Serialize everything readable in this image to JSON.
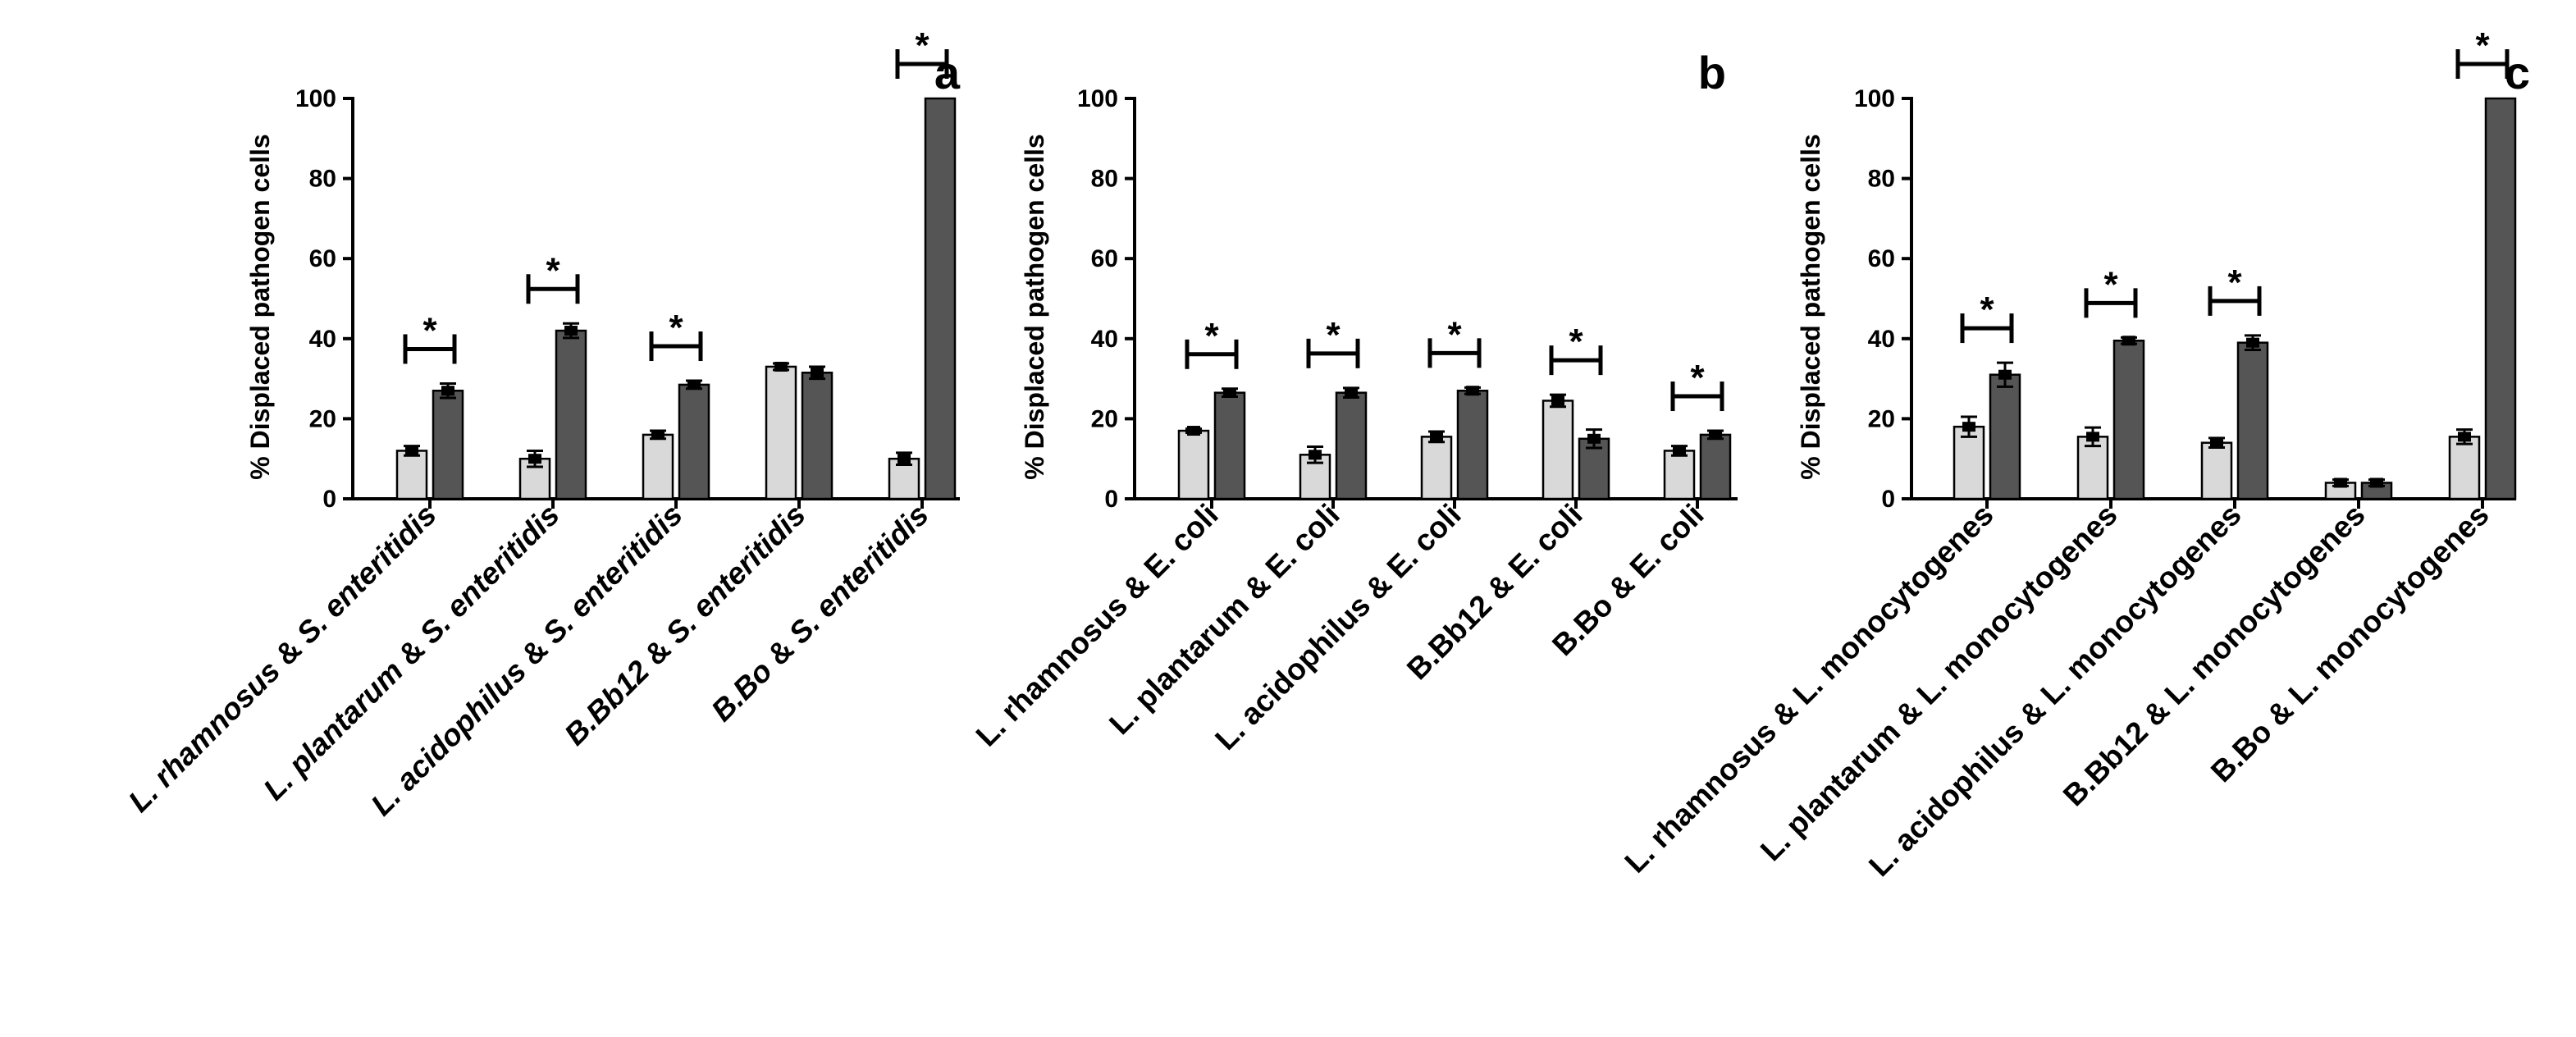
{
  "colors": {
    "treatment_a": "#d9d9d9",
    "treatment_b": "#555555",
    "axis": "#000000"
  },
  "chart_data": [
    {
      "type": "bar",
      "panel_label": "a",
      "ylabel": "% Displaced pathogen cells",
      "ylim": [
        0,
        100
      ],
      "yticks": [
        "0",
        "20",
        "40",
        "60",
        "80",
        "100"
      ],
      "categories": [
        [
          {
            "t": "L. rhamnosus",
            "i": true
          },
          {
            "t": " & ",
            "i": false
          },
          {
            "t": "S. enteritidis",
            "i": true
          }
        ],
        [
          {
            "t": "L. plantarum",
            "i": true
          },
          {
            "t": " & ",
            "i": false
          },
          {
            "t": "S. enteritidis",
            "i": true
          }
        ],
        [
          {
            "t": "L. acidophilus",
            "i": true
          },
          {
            "t": " & ",
            "i": false
          },
          {
            "t": "S. enteritidis",
            "i": true
          }
        ],
        [
          {
            "t": "B.Bb12",
            "i": true
          },
          {
            "t": " & ",
            "i": false
          },
          {
            "t": "S. enteritidis",
            "i": true
          }
        ],
        [
          {
            "t": "B.Bo",
            "i": true
          },
          {
            "t": " & ",
            "i": false
          },
          {
            "t": "S. enteritidis",
            "i": true
          }
        ]
      ],
      "series": [
        {
          "name": "light",
          "values": [
            12,
            10,
            16,
            33,
            10
          ],
          "errors": [
            1.2,
            2.0,
            1.0,
            0.8,
            1.5
          ]
        },
        {
          "name": "dark",
          "values": [
            27,
            42,
            28.5,
            31.5,
            100
          ],
          "errors": [
            1.8,
            1.8,
            1.0,
            1.5,
            0
          ]
        }
      ],
      "significance": [
        "*",
        "*",
        "*",
        "",
        "*"
      ]
    },
    {
      "type": "bar",
      "panel_label": "b",
      "ylabel": "% Displaced pathogen cells",
      "ylim": [
        0,
        100
      ],
      "yticks": [
        "0",
        "20",
        "40",
        "60",
        "80",
        "100"
      ],
      "categories": [
        [
          {
            "t": "L. rhamnosus & E. coli",
            "i": false
          }
        ],
        [
          {
            "t": "L. plantarum & E. coli",
            "i": false
          }
        ],
        [
          {
            "t": "L. acidophilus & E. coli",
            "i": false
          }
        ],
        [
          {
            "t": "B.Bb12 & E. coli",
            "i": false
          }
        ],
        [
          {
            "t": "B.Bo & E. coli",
            "i": false
          }
        ]
      ],
      "series": [
        {
          "name": "light",
          "values": [
            17,
            11,
            15.5,
            24.5,
            12
          ],
          "errors": [
            0.5,
            2.0,
            1.3,
            1.5,
            1.2
          ]
        },
        {
          "name": "dark",
          "values": [
            26.5,
            26.5,
            27,
            15,
            16
          ],
          "errors": [
            1.0,
            1.2,
            0.8,
            2.3,
            1.0
          ]
        }
      ],
      "significance": [
        "*",
        "*",
        "*",
        "*",
        "*"
      ]
    },
    {
      "type": "bar",
      "panel_label": "c",
      "ylabel": "% Displaced pathogen cells",
      "ylim": [
        0,
        100
      ],
      "yticks": [
        "0",
        "20",
        "40",
        "60",
        "80",
        "100"
      ],
      "categories": [
        [
          {
            "t": "L. rhamnosus & L. monocytogenes",
            "i": false
          }
        ],
        [
          {
            "t": "L. plantarum & L. monocytogenes",
            "i": false
          }
        ],
        [
          {
            "t": "L. acidophilus & L. monocytogenes",
            "i": false
          }
        ],
        [
          {
            "t": "B.Bb12 & L. monocytogenes",
            "i": false
          }
        ],
        [
          {
            "t": "B.Bo & L. monocytogenes",
            "i": false
          }
        ]
      ],
      "series": [
        {
          "name": "light",
          "values": [
            18,
            15.5,
            14,
            4,
            15.5
          ],
          "errors": [
            2.5,
            2.3,
            1.2,
            0.8,
            1.8
          ]
        },
        {
          "name": "dark",
          "values": [
            31,
            39.5,
            39,
            4,
            100
          ],
          "errors": [
            3.0,
            0.8,
            1.8,
            0.8,
            0
          ]
        }
      ],
      "significance": [
        "*",
        "*",
        "*",
        "",
        "*"
      ]
    }
  ]
}
